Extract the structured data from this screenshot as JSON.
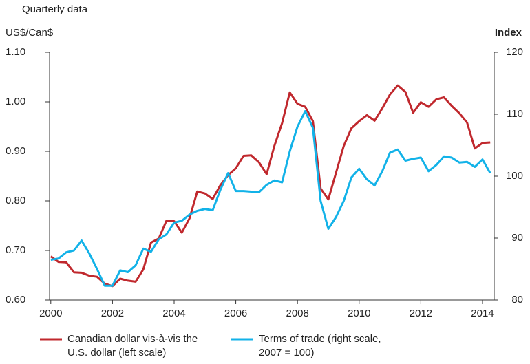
{
  "chart_data": {
    "type": "line",
    "subtitle": "Quarterly data",
    "ylabel": "US$/Can$",
    "y2label": "Index",
    "x": [
      2000,
      2000.25,
      2000.5,
      2000.75,
      2001,
      2001.25,
      2001.5,
      2001.75,
      2002,
      2002.25,
      2002.5,
      2002.75,
      2003,
      2003.25,
      2003.5,
      2003.75,
      2004,
      2004.25,
      2004.5,
      2004.75,
      2005,
      2005.25,
      2005.5,
      2005.75,
      2006,
      2006.25,
      2006.5,
      2006.75,
      2007,
      2007.25,
      2007.5,
      2007.75,
      2008,
      2008.25,
      2008.5,
      2008.75,
      2009,
      2009.25,
      2009.5,
      2009.75,
      2010,
      2010.25,
      2010.5,
      2010.75,
      2011,
      2011.25,
      2011.5,
      2011.75,
      2012,
      2012.25,
      2012.5,
      2012.75,
      2013,
      2013.25,
      2013.5,
      2013.75,
      2014,
      2014.25
    ],
    "xlim": [
      1999.96,
      2014.38
    ],
    "xticks": [
      2000,
      2002,
      2004,
      2006,
      2008,
      2010,
      2012,
      2014
    ],
    "ylim": [
      0.6,
      1.1
    ],
    "yticks": [
      {
        "value": 0.6,
        "label": "0.60"
      },
      {
        "value": 0.7,
        "label": "0.70"
      },
      {
        "value": 0.8,
        "label": "0.80"
      },
      {
        "value": 0.9,
        "label": "0.90"
      },
      {
        "value": 1.0,
        "label": "1.00"
      },
      {
        "value": 1.1,
        "label": "1.10"
      }
    ],
    "y2lim": [
      80,
      120
    ],
    "y2ticks": [
      80,
      90,
      100,
      110,
      120
    ],
    "series": [
      {
        "name": "Canadian dollar vis-à-vis the U.S. dollar (left scale)",
        "color": "#c0282d",
        "values": [
          0.688,
          0.677,
          0.676,
          0.656,
          0.655,
          0.649,
          0.647,
          0.633,
          0.628,
          0.643,
          0.639,
          0.637,
          0.662,
          0.716,
          0.724,
          0.76,
          0.759,
          0.736,
          0.765,
          0.819,
          0.815,
          0.804,
          0.832,
          0.852,
          0.866,
          0.891,
          0.892,
          0.878,
          0.854,
          0.911,
          0.957,
          1.019,
          0.996,
          0.99,
          0.961,
          0.825,
          0.803,
          0.857,
          0.911,
          0.947,
          0.961,
          0.973,
          0.962,
          0.987,
          1.015,
          1.033,
          1.02,
          0.978,
          0.999,
          0.99,
          1.005,
          1.009,
          0.992,
          0.977,
          0.958,
          0.906,
          0.917,
          0.918
        ]
      },
      {
        "name": "Terms of trade (right scale, 2007 = 100)",
        "color": "#12b2e8",
        "axis": "y2",
        "values": [
          86.5,
          86.7,
          87.7,
          88.0,
          89.6,
          87.5,
          85.0,
          82.3,
          82.3,
          84.8,
          84.5,
          85.6,
          88.3,
          87.8,
          89.8,
          90.6,
          92.5,
          92.8,
          93.8,
          94.4,
          94.7,
          94.5,
          97.8,
          100.5,
          97.6,
          97.6,
          97.5,
          97.4,
          98.6,
          99.3,
          99.0,
          104.0,
          108.0,
          110.5,
          107.8,
          96.0,
          91.5,
          93.4,
          96.0,
          99.8,
          101.2,
          99.5,
          98.5,
          100.8,
          103.8,
          104.3,
          102.5,
          102.8,
          103.0,
          100.8,
          101.8,
          103.2,
          103.0,
          102.2,
          102.3,
          101.5,
          102.7,
          100.5
        ]
      }
    ]
  }
}
